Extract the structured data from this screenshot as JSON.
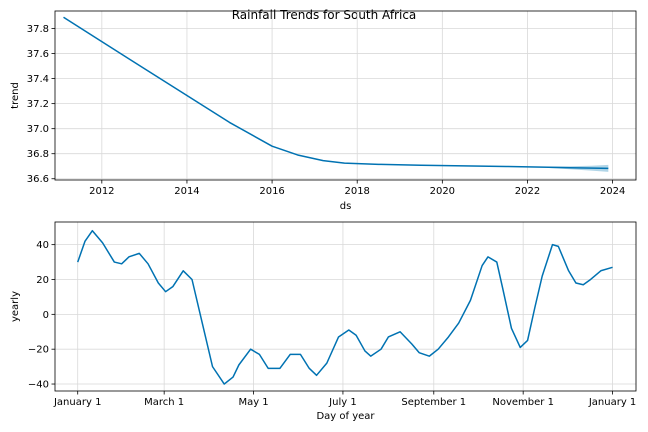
{
  "title": "Rainfall Trends for South Africa",
  "colors": {
    "line": "#0072B2",
    "band": "#9ecae1"
  },
  "chart_data": [
    {
      "type": "line",
      "name": "trend-panel",
      "xlabel": "ds",
      "ylabel": "trend",
      "xlim": [
        2010.9,
        2024.55
      ],
      "ylim": [
        36.59,
        37.94
      ],
      "grid": true,
      "xticks": [
        2012,
        2014,
        2016,
        2018,
        2020,
        2022,
        2024
      ],
      "xtick_labels": [
        "2012",
        "2014",
        "2016",
        "2018",
        "2020",
        "2022",
        "2024"
      ],
      "yticks": [
        36.6,
        36.8,
        37.0,
        37.2,
        37.4,
        37.6,
        37.8
      ],
      "ytick_labels": [
        "36.6",
        "36.8",
        "37.0",
        "37.2",
        "37.4",
        "37.6",
        "37.8"
      ],
      "series": [
        {
          "x": [
            2011.1,
            2012,
            2013,
            2014,
            2015,
            2016,
            2016.6,
            2017.2,
            2017.7,
            2018.5,
            2019.5,
            2020.5,
            2021.5,
            2022.5,
            2023,
            2023.9
          ],
          "y": [
            37.89,
            37.695,
            37.48,
            37.265,
            37.05,
            36.86,
            36.79,
            36.745,
            36.725,
            36.715,
            36.708,
            36.703,
            36.698,
            36.692,
            36.688,
            36.683
          ],
          "band_x": [
            2022.5,
            2023.0,
            2023.5,
            2023.9
          ],
          "band_lower": [
            36.686,
            36.676,
            36.665,
            36.655
          ],
          "band_upper": [
            36.698,
            36.7,
            36.704,
            36.711
          ]
        }
      ]
    },
    {
      "type": "line",
      "name": "yearly-panel",
      "xlabel": "Day of year",
      "ylabel": "yearly",
      "xlim": [
        -15.5,
        381
      ],
      "ylim": [
        -44,
        53
      ],
      "grid": true,
      "xticks": [
        0,
        59,
        120,
        181,
        243,
        304,
        365
      ],
      "xtick_labels": [
        "January 1",
        "March 1",
        "May 1",
        "July 1",
        "September 1",
        "November 1",
        "January 1"
      ],
      "yticks": [
        -40,
        -20,
        0,
        20,
        40
      ],
      "ytick_labels": [
        "−40",
        "−20",
        "0",
        "20",
        "40"
      ],
      "series": [
        {
          "x": [
            0,
            5,
            10,
            17,
            25,
            30,
            35,
            42,
            48,
            55,
            60,
            65,
            72,
            78,
            85,
            92,
            100,
            106,
            110,
            118,
            124,
            130,
            138,
            145,
            152,
            158,
            163,
            170,
            178,
            185,
            190,
            196,
            200,
            207,
            212,
            220,
            228,
            233,
            240,
            246,
            253,
            260,
            268,
            276,
            280,
            286,
            290,
            296,
            302,
            307,
            312,
            317,
            324,
            328,
            335,
            340,
            345,
            350,
            357,
            365
          ],
          "y": [
            30,
            42,
            48,
            41,
            30,
            29,
            33,
            35,
            29,
            18,
            13,
            16,
            25,
            20,
            -5,
            -30,
            -40,
            -36,
            -29,
            -20,
            -23,
            -31,
            -31,
            -23,
            -23,
            -31,
            -35,
            -28,
            -13,
            -9,
            -12,
            -21,
            -24,
            -20,
            -13,
            -10,
            -17,
            -22,
            -24,
            -20,
            -13,
            -5,
            8,
            28,
            33,
            30,
            15,
            -8,
            -19,
            -15,
            4,
            22,
            40,
            39,
            25,
            18,
            17,
            20,
            25,
            27
          ]
        }
      ]
    }
  ]
}
